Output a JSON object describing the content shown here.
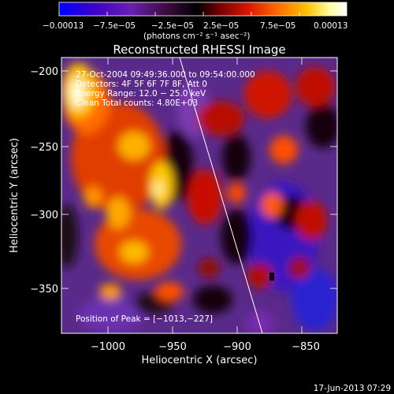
{
  "colorbar": {
    "tick_labels": [
      "−0.00013",
      "−7.5e−05",
      "−2.5e−05",
      "2.5e−05",
      "7.5e−05",
      "0.00013"
    ],
    "unit_label": "(photons cm⁻² s⁻¹ asec⁻²)",
    "gradient_colors": [
      "#0000ff",
      "#3c00c8",
      "#6a1fb0",
      "#3a0a3a",
      "#000000",
      "#7a0000",
      "#d81800",
      "#ff6a00",
      "#ffc000",
      "#ffffa0",
      "#ffffff"
    ]
  },
  "title": "Reconstructed RHESSI Image",
  "overlay": {
    "time_range": "27-Oct-2004 09:49:36.000 to 09:54:00.000",
    "detectors": "Detectors: 4F 5F 6F 7F 8F, Att 0",
    "energy": "Energy Range: 12.0 − 25.0 keV",
    "counts": "Clean    Total counts: 4.80E+03",
    "peak": "Position of Peak = [−1013,−227]"
  },
  "axes": {
    "xlabel": "Heliocentric X (arcsec)",
    "ylabel": "Heliocentric Y (arcsec)",
    "xticks": [
      "−1000",
      "−950",
      "−900",
      "−850"
    ],
    "yticks": [
      "−200",
      "−250",
      "−300",
      "−350"
    ],
    "xlim": [
      -1030,
      -840
    ],
    "ylim": [
      -383,
      -188
    ]
  },
  "footer_date": "17-Jun-2013 07:29"
}
